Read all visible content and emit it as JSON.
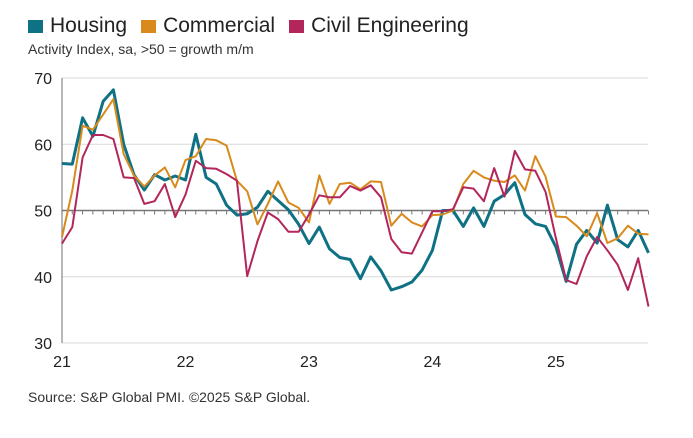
{
  "chart_data": {
    "type": "line",
    "subtitle": "Activity Index, sa, >50 = growth m/m",
    "source": "Source: S&P Global PMI. ©2025 S&P Global.",
    "ylim": [
      30,
      70
    ],
    "yticks": [
      "30",
      "40",
      "50",
      "60",
      "70"
    ],
    "xticks": [
      "21",
      "22",
      "23",
      "24",
      "25"
    ],
    "x_start": "2021-01",
    "frequency": "monthly",
    "reference_line": 50,
    "grid": true,
    "legend": "top-left",
    "series": [
      {
        "name": "Housing",
        "color": "#0f7184",
        "values": [
          57.1,
          57.0,
          64.0,
          61.2,
          66.5,
          68.2,
          60.0,
          55.4,
          53.1,
          55.4,
          54.6,
          55.2,
          54.6,
          61.5,
          55.0,
          54.0,
          50.8,
          49.3,
          49.5,
          50.5,
          52.9,
          51.5,
          50.1,
          47.9,
          45.0,
          47.5,
          44.2,
          42.9,
          42.6,
          39.7,
          43.0,
          40.9,
          38.0,
          38.5,
          39.2,
          41.0,
          44.0,
          50.0,
          50.0,
          47.6,
          50.4,
          47.6,
          51.4,
          52.4,
          54.2,
          49.4,
          48.0,
          47.6,
          44.5,
          39.3,
          44.9,
          47.0,
          45.1,
          50.8,
          45.6,
          44.5,
          47.0,
          43.6
        ]
      },
      {
        "name": "Commercial",
        "color": "#d88a1c",
        "values": [
          46.0,
          53.0,
          62.8,
          62.2,
          64.5,
          66.8,
          58.5,
          55.3,
          53.6,
          55.3,
          56.5,
          53.5,
          57.6,
          58.2,
          60.8,
          60.6,
          59.8,
          54.5,
          52.9,
          47.9,
          51.0,
          54.4,
          51.2,
          50.4,
          48.2,
          55.3,
          51.0,
          54.0,
          54.2,
          53.2,
          54.4,
          54.3,
          47.7,
          49.5,
          48.2,
          47.6,
          49.3,
          49.4,
          50.0,
          54.0,
          56.0,
          55.0,
          54.5,
          54.3,
          55.3,
          53.0,
          58.2,
          55.1,
          49.1,
          49.0,
          47.7,
          46.1,
          49.6,
          45.1,
          45.8,
          47.7,
          46.5,
          46.4
        ]
      },
      {
        "name": "Civil Engineering",
        "color": "#b3265c",
        "values": [
          45.0,
          47.5,
          58.0,
          61.4,
          61.4,
          60.8,
          55.0,
          54.9,
          51.0,
          51.4,
          54.0,
          49.0,
          52.4,
          57.5,
          56.4,
          56.3,
          55.5,
          54.5,
          40.1,
          45.4,
          49.7,
          48.7,
          46.8,
          46.8,
          49.4,
          52.3,
          52.0,
          52.0,
          53.7,
          53.0,
          53.8,
          52.0,
          45.7,
          43.7,
          43.5,
          46.7,
          49.9,
          49.9,
          50.2,
          53.5,
          53.3,
          51.4,
          56.4,
          52.1,
          59.0,
          56.2,
          56.0,
          52.8,
          45.8,
          39.5,
          38.9,
          43.1,
          46.0,
          44.0,
          41.8,
          38.0,
          42.8,
          35.5
        ]
      }
    ]
  }
}
